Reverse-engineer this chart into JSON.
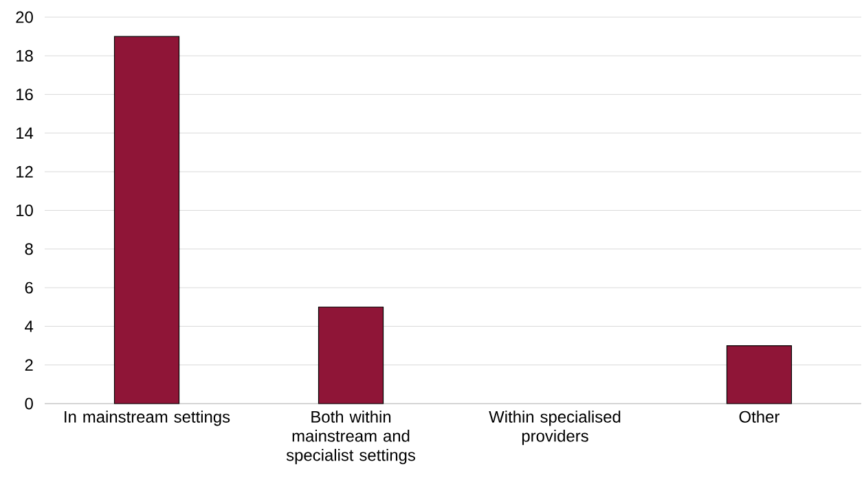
{
  "chart_data": {
    "type": "bar",
    "categories": [
      "In mainstream settings",
      "Both within mainstream and specialist settings",
      "Within specialised providers",
      "Other"
    ],
    "values": [
      19,
      5,
      0,
      3
    ],
    "color": "#8f1537",
    "ylim": [
      0,
      20
    ],
    "yticks": [
      0,
      2,
      4,
      6,
      8,
      10,
      12,
      14,
      16,
      18,
      20
    ],
    "grid": "y"
  }
}
